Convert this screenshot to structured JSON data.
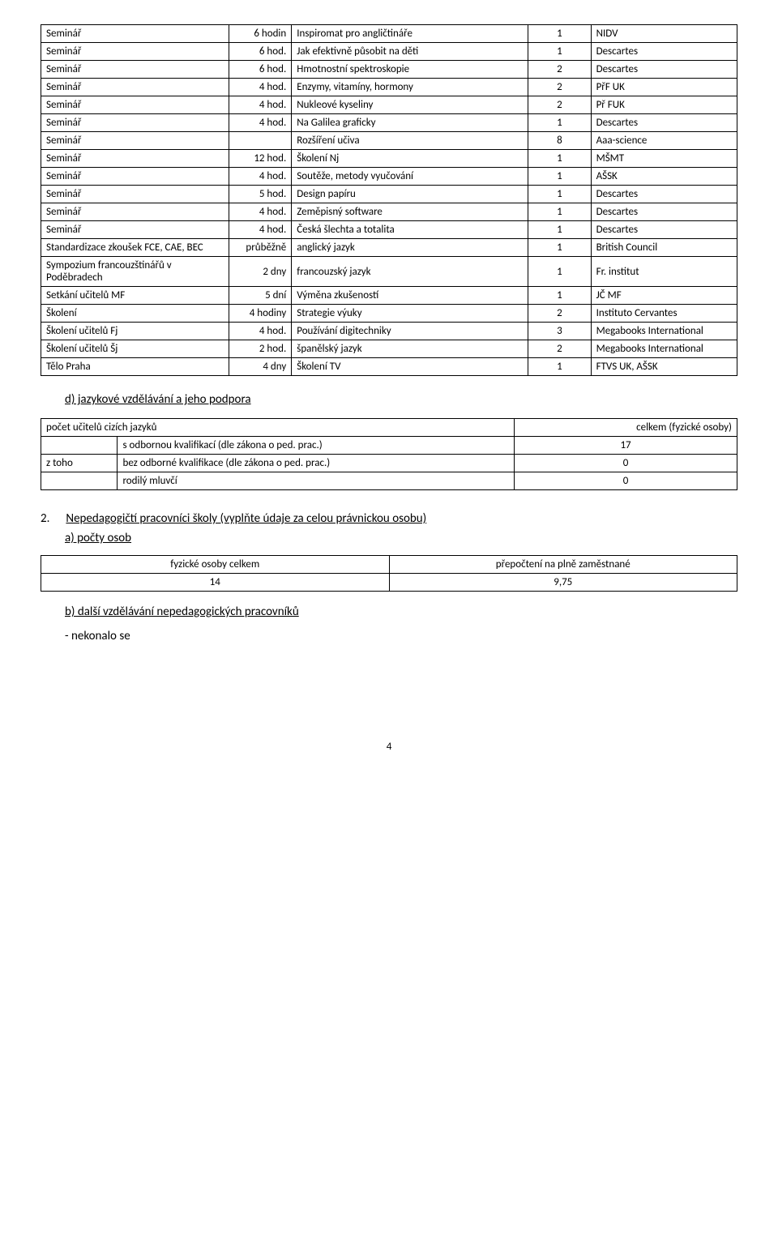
{
  "table1": {
    "rows": [
      [
        "Seminář",
        "6 hodin",
        "Inspiromat pro angličtináře",
        "1",
        "NIDV"
      ],
      [
        "Seminář",
        "6 hod.",
        "Jak efektivně působit na děti",
        "1",
        "Descartes"
      ],
      [
        "Seminář",
        "6 hod.",
        "Hmotnostní spektroskopie",
        "2",
        "Descartes"
      ],
      [
        "Seminář",
        "4 hod.",
        "Enzymy, vitamíny, hormony",
        "2",
        "PřF UK"
      ],
      [
        "Seminář",
        "4 hod.",
        "Nukleové kyseliny",
        "2",
        "Př FUK"
      ],
      [
        "Seminář",
        "4 hod.",
        "Na Galilea graficky",
        "1",
        "Descartes"
      ],
      [
        "Seminář",
        "",
        "Rozšíření učiva",
        "8",
        "Aaa-science"
      ],
      [
        "Seminář",
        "12 hod.",
        "Školení Nj",
        "1",
        "MŠMT"
      ],
      [
        "Seminář",
        "4 hod.",
        "Soutěže, metody vyučování",
        "1",
        "AŠSK"
      ],
      [
        "Seminář",
        "5 hod.",
        "Design papíru",
        "1",
        "Descartes"
      ],
      [
        "Seminář",
        "4 hod.",
        "Zeměpisný software",
        "1",
        "Descartes"
      ],
      [
        "Seminář",
        "4 hod.",
        "Česká šlechta a totalita",
        "1",
        "Descartes"
      ],
      [
        "Standardizace zkoušek FCE, CAE, BEC",
        "průběžně",
        "anglický jazyk",
        "1",
        "British Council"
      ],
      [
        "Sympozium francouzštinářů v Poděbradech",
        "2 dny",
        "francouzský jazyk",
        "1",
        "Fr. institut"
      ],
      [
        "Setkání učitelů MF",
        "5 dní",
        "Výměna zkušeností",
        "1",
        "JČ MF"
      ],
      [
        "Školení",
        "4 hodiny",
        "Strategie výuky",
        "2",
        "Instituto Cervantes"
      ],
      [
        "Školení učitelů Fj",
        "4 hod.",
        "Používání digitechniky",
        "3",
        "Megabooks International"
      ],
      [
        "Školení učitelů Šj",
        "2 hod.",
        "španělský jazyk",
        "2",
        "Megabooks International"
      ],
      [
        "Tělo Praha",
        "4 dny",
        "Školení TV",
        "1",
        "FTVS UK, AŠSK"
      ]
    ]
  },
  "heading_d": "d) jazykové vzdělávání a jeho podpora",
  "table2": {
    "header_left": "počet učitelů cizích jazyků",
    "header_right": "celkem (fyzické osoby)",
    "rows": [
      [
        "",
        "s odbornou kvalifikací (dle zákona o ped. prac.)",
        "17"
      ],
      [
        "z toho",
        "bez odborné kvalifikace (dle zákona o ped. prac.)",
        "0"
      ],
      [
        "",
        "rodilý mluvčí",
        "0"
      ]
    ]
  },
  "heading_2_num": "2.",
  "heading_2_txt": "Nepedagogičtí pracovníci školy (vyplňte údaje za celou právnickou osobu)",
  "sub_a": "a) počty osob",
  "table3": {
    "header": [
      "fyzické osoby celkem",
      "přepočtení na plně zaměstnané"
    ],
    "row": [
      "14",
      "9,75"
    ]
  },
  "sub_b": "b) další vzdělávání nepedagogických pracovníků",
  "sub_b_note": "- nekonalo se",
  "page_number": "4"
}
